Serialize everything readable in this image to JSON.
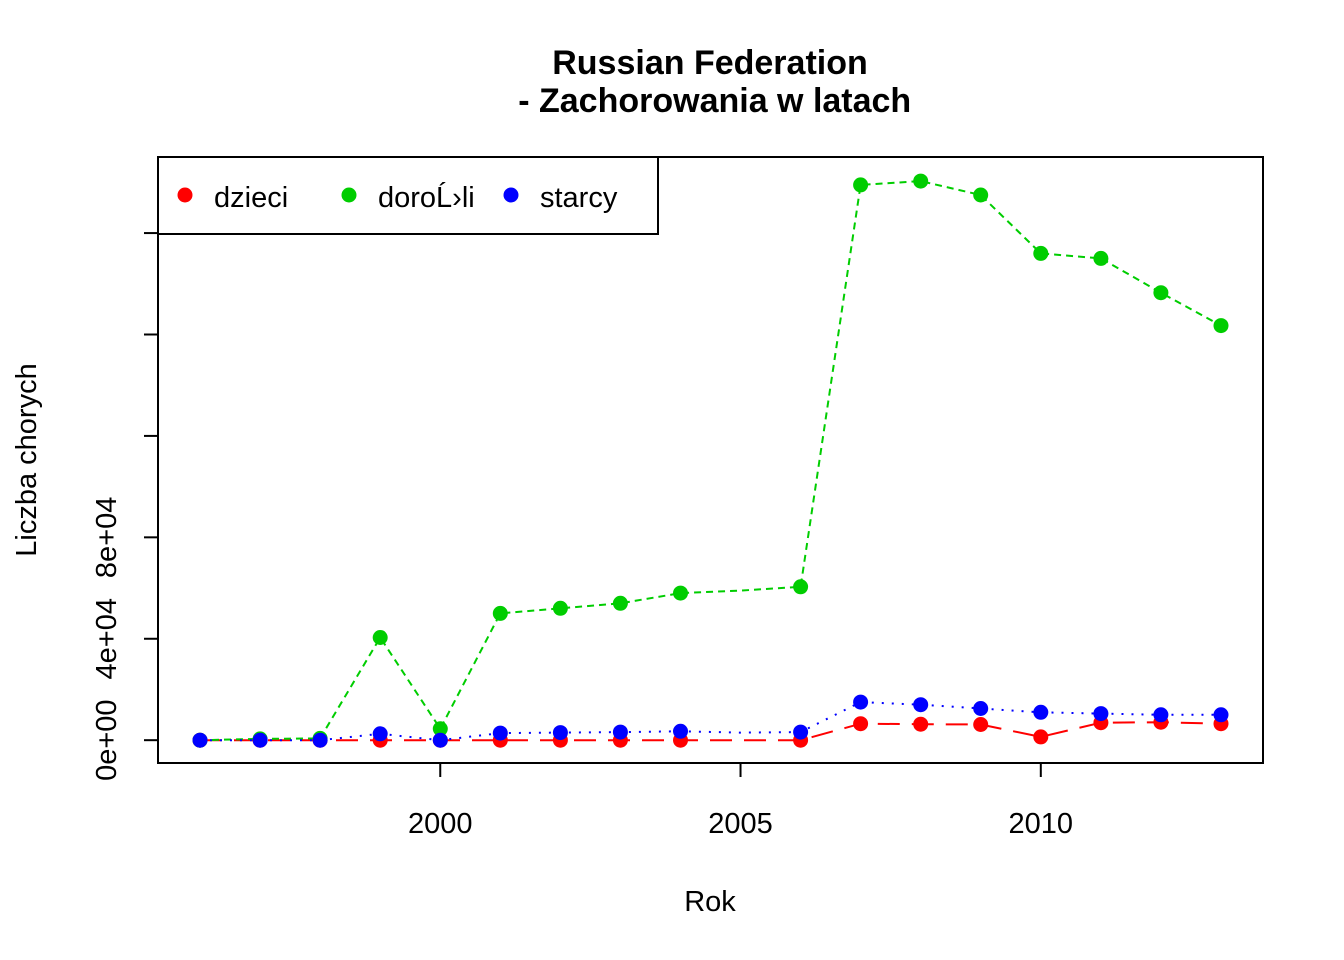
{
  "chart_data": {
    "type": "line",
    "title": [
      "Russian Federation",
      " - Zachorowania w latach"
    ],
    "xlabel": "Rok",
    "ylabel": "Liczba chorych",
    "x": [
      1996,
      1997,
      1998,
      1999,
      2000,
      2001,
      2002,
      2003,
      2004,
      2005,
      2006,
      2007,
      2008,
      2009,
      2010,
      2011,
      2012,
      2013
    ],
    "xlim": [
      1995.3,
      2013.7
    ],
    "ylim": [
      -9000,
      230000
    ],
    "xticks": [
      2000,
      2005,
      2010
    ],
    "xtick_labels": [
      "2000",
      "2005",
      "2010"
    ],
    "yticks": [
      0,
      40000,
      80000,
      120000,
      160000,
      200000
    ],
    "ytick_labels": [
      "0e+00",
      "4e+04",
      "8e+04",
      "",
      "",
      ""
    ],
    "legend": {
      "placement": "top-left",
      "ncol": 3
    },
    "series": [
      {
        "name": "dzieci",
        "color": "#ff0000",
        "line_style": "longdash",
        "marker_years": [
          1996,
          1997,
          1998,
          1999,
          2000,
          2001,
          2002,
          2003,
          2004,
          2006,
          2007,
          2008,
          2009,
          2010,
          2011,
          2012,
          2013
        ],
        "values": [
          0,
          0,
          0,
          0,
          0,
          0,
          0,
          0,
          0,
          0,
          0,
          6500,
          6300,
          6200,
          1300,
          6900,
          7100,
          6500
        ]
      },
      {
        "name": "doroĹ›li",
        "color": "#00cd00",
        "line_style": "dashed",
        "marker_years": [
          1996,
          1997,
          1998,
          1999,
          2000,
          2001,
          2002,
          2003,
          2004,
          2006,
          2007,
          2008,
          2009,
          2010,
          2011,
          2012,
          2013
        ],
        "values": [
          0,
          500,
          700,
          40500,
          4500,
          50000,
          52000,
          54000,
          58000,
          59000,
          60500,
          219000,
          220500,
          215000,
          192000,
          190000,
          176500,
          163500
        ]
      },
      {
        "name": "starcy",
        "color": "#0000ff",
        "line_style": "dotted",
        "marker_years": [
          1996,
          1997,
          1998,
          1999,
          2000,
          2001,
          2002,
          2003,
          2004,
          2006,
          2007,
          2008,
          2009,
          2010,
          2011,
          2012,
          2013
        ],
        "values": [
          0,
          0,
          0,
          2500,
          0,
          2800,
          3000,
          3200,
          3500,
          3000,
          3200,
          15000,
          14000,
          12500,
          11000,
          10500,
          10000,
          10000
        ]
      }
    ]
  }
}
